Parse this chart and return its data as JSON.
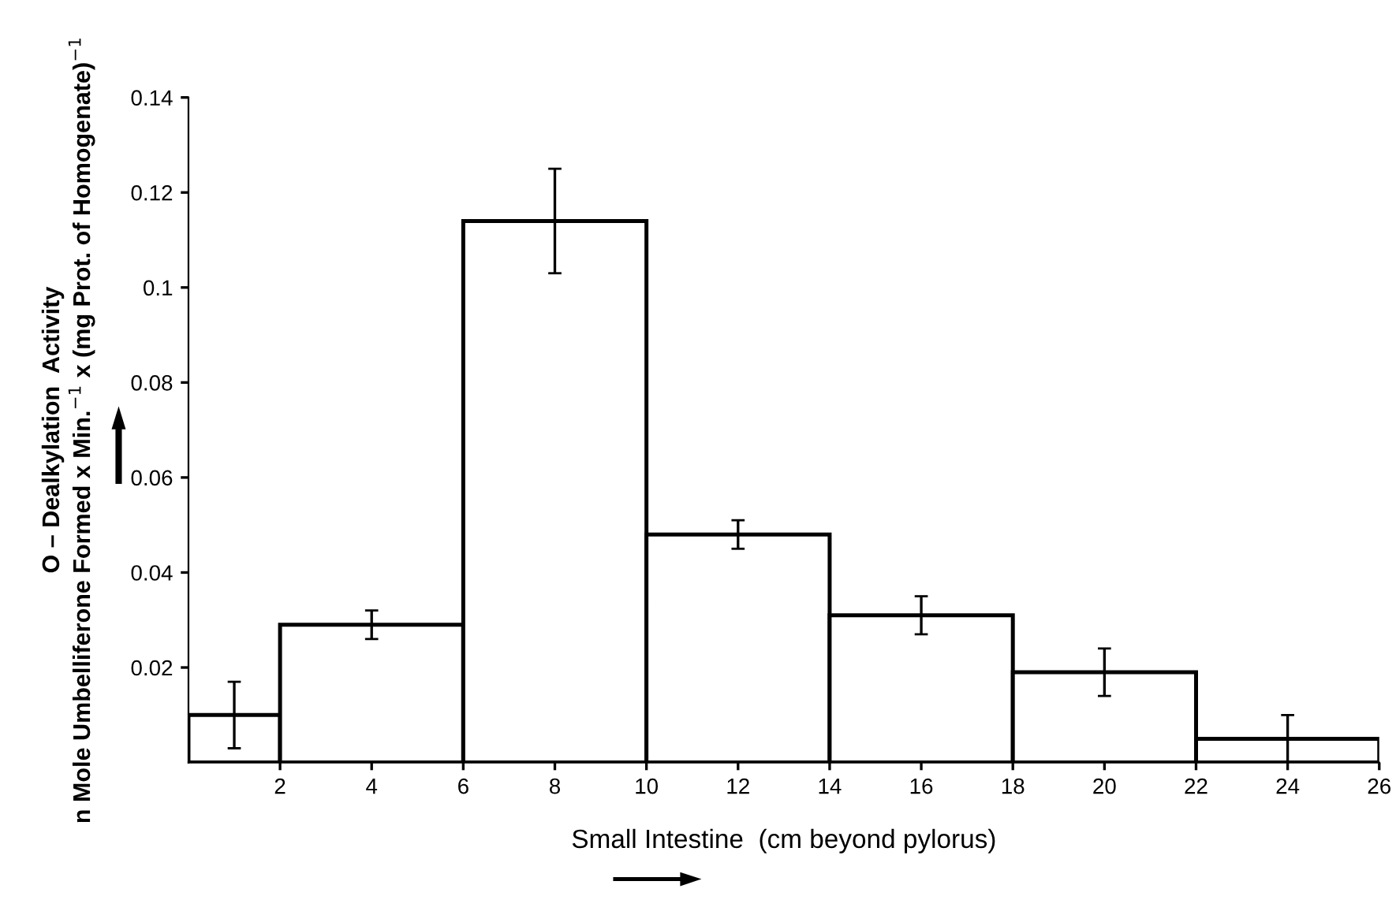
{
  "chart_data": {
    "type": "histogram",
    "xlabel": "Small Intestine  (cm beyond pylorus)",
    "ylabel": "O – Dealkylation  Activity\nn Mole Umbelliferone Formed x Min.$^{−1}$ x (mg Prot. of Homogenate)$^{−1}$",
    "bins": [
      0,
      2,
      6,
      10,
      14,
      18,
      22,
      26
    ],
    "values": [
      0.01,
      0.029,
      0.114,
      0.048,
      0.031,
      0.019,
      0.005
    ],
    "errors": [
      0.007,
      0.003,
      0.011,
      0.003,
      0.004,
      0.005,
      0.005
    ],
    "color": "#ffffff",
    "xlim": [
      0,
      26
    ],
    "xticks": [
      2,
      4,
      6,
      8,
      10,
      12,
      14,
      16,
      18,
      20,
      22,
      24,
      26
    ],
    "ylim": [
      0,
      0.14
    ],
    "yticks": [
      0.02,
      0.04,
      0.06,
      0.08,
      0.1,
      0.12,
      0.14
    ],
    "grid": false
  }
}
